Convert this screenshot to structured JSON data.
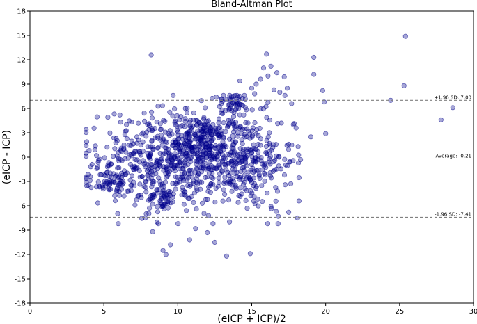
{
  "chart_data": {
    "type": "scatter",
    "title": "Bland-Altman Plot",
    "xlabel": "(eICP + ICP)/2",
    "ylabel": "(eICP - ICP)",
    "xlim": [
      0,
      30
    ],
    "ylim": [
      -18,
      18
    ],
    "x_ticks": [
      "0",
      "5",
      "10",
      "15",
      "20",
      "25",
      "30"
    ],
    "y_ticks": [
      "-18",
      "-15",
      "-12",
      "-9",
      "-6",
      "-3",
      "0",
      "3",
      "6",
      "9",
      "12",
      "15",
      "18"
    ],
    "grid": false,
    "point_color": "#00008b",
    "reference_lines": [
      {
        "value": 7.0,
        "label": "+1.96 SD: 7.00",
        "color": "#808080"
      },
      {
        "value": -0.21,
        "label": "Average: -0.21",
        "color": "#ff0000"
      },
      {
        "value": -7.41,
        "label": "-1.96 SD: -7.41",
        "color": "#808080"
      }
    ],
    "clusters": [
      {
        "cx": 10,
        "cy": 0,
        "sx": 2.6,
        "sy": 3.0,
        "n": 650
      },
      {
        "cx": 14.6,
        "cy": -0.6,
        "sx": 1.6,
        "sy": 3.0,
        "n": 260
      },
      {
        "cx": 9.0,
        "cy": -5.2,
        "sx": 0.5,
        "sy": 0.7,
        "n": 45
      },
      {
        "cx": 5.5,
        "cy": -3.3,
        "sx": 0.6,
        "sy": 0.8,
        "n": 55
      },
      {
        "cx": 13.8,
        "cy": 6.5,
        "sx": 0.6,
        "sy": 0.8,
        "n": 45
      },
      {
        "cx": 11.8,
        "cy": 2.0,
        "sx": 0.8,
        "sy": 1.2,
        "n": 100
      }
    ],
    "outliers": [
      [
        3.8,
        0.5
      ],
      [
        4.0,
        0.8
      ],
      [
        4.2,
        -0.9
      ],
      [
        4.5,
        0.2
      ],
      [
        8.2,
        12.6
      ],
      [
        8.3,
        -9.2
      ],
      [
        9.0,
        -11.5
      ],
      [
        9.2,
        -12.0
      ],
      [
        9.5,
        -10.8
      ],
      [
        13.3,
        -12.2
      ],
      [
        14.9,
        -11.9
      ],
      [
        15.0,
        8.5
      ],
      [
        15.3,
        9.0
      ],
      [
        15.6,
        9.6
      ],
      [
        15.8,
        11.0
      ],
      [
        16.0,
        12.7
      ],
      [
        16.3,
        11.2
      ],
      [
        16.7,
        10.4
      ],
      [
        16.9,
        8.0
      ],
      [
        17.4,
        8.5
      ],
      [
        17.7,
        6.6
      ],
      [
        18.0,
        3.6
      ],
      [
        18.2,
        -5.4
      ],
      [
        19.2,
        12.3
      ],
      [
        19.2,
        10.2
      ],
      [
        19.8,
        8.2
      ],
      [
        19.9,
        6.8
      ],
      [
        20.0,
        2.9
      ],
      [
        19.0,
        2.5
      ],
      [
        24.4,
        7.0
      ],
      [
        25.3,
        8.8
      ],
      [
        25.4,
        14.9
      ],
      [
        27.8,
        4.6
      ],
      [
        28.6,
        6.1
      ],
      [
        16.1,
        10.0
      ],
      [
        14.2,
        9.4
      ],
      [
        15.2,
        7.8
      ],
      [
        17.0,
        4.2
      ],
      [
        18.1,
        -7.5
      ],
      [
        17.5,
        -6.8
      ],
      [
        16.8,
        -7.3
      ],
      [
        12.0,
        -9.3
      ],
      [
        10.8,
        -10.2
      ],
      [
        12.5,
        -10.5
      ],
      [
        11.2,
        -8.8
      ],
      [
        8.6,
        -8.0
      ],
      [
        7.8,
        -7.5
      ],
      [
        16.5,
        8.3
      ],
      [
        14.5,
        7.6
      ],
      [
        17.2,
        9.9
      ],
      [
        13.0,
        5.8
      ]
    ]
  }
}
